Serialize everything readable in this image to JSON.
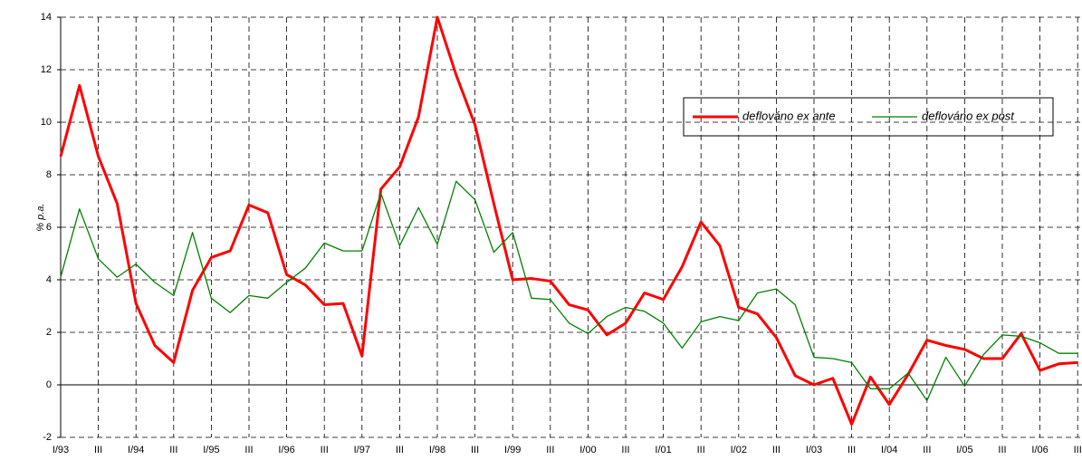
{
  "chart_data": {
    "type": "line",
    "y_label": "% p.a.",
    "categories": [
      "I/93",
      null,
      "III",
      null,
      "I/94",
      null,
      "III",
      null,
      "I/95",
      null,
      "III",
      null,
      "I/96",
      null,
      "III",
      null,
      "I/97",
      null,
      "III",
      null,
      "I/98",
      null,
      "III",
      null,
      "I/99",
      null,
      "III",
      null,
      "I/00",
      null,
      "III",
      null,
      "I/01",
      null,
      "III",
      null,
      "I/02",
      null,
      "III",
      null,
      "I/03",
      null,
      "III",
      null,
      "I/04",
      null,
      "III",
      null,
      "I/05",
      null,
      "III",
      null,
      "I/06",
      null,
      "III"
    ],
    "series": [
      {
        "name": "deflováno ex ante",
        "color": "#ff0000",
        "values": [
          8.7,
          11.4,
          8.7,
          6.9,
          3.1,
          1.5,
          0.85,
          3.6,
          4.85,
          5.1,
          6.85,
          6.55,
          4.2,
          3.8,
          3.05,
          3.1,
          1.1,
          7.45,
          8.3,
          10.2,
          14.0,
          11.8,
          9.9,
          6.9,
          4.0,
          4.05,
          3.95,
          3.05,
          2.85,
          1.9,
          2.35,
          3.5,
          3.25,
          4.5,
          6.2,
          5.3,
          2.95,
          2.7,
          1.8,
          0.35,
          0.0,
          0.25,
          -1.5,
          0.3,
          -0.75,
          0.4,
          1.7,
          1.5,
          1.35,
          1.0,
          1.0,
          1.95,
          0.55,
          0.8,
          0.85
        ]
      },
      {
        "name": "deflováno ex post",
        "color": "#008000",
        "values": [
          4.1,
          6.7,
          4.8,
          4.1,
          4.6,
          3.9,
          3.4,
          5.8,
          3.3,
          2.75,
          3.4,
          3.3,
          3.9,
          4.45,
          5.4,
          5.1,
          5.1,
          7.3,
          5.3,
          6.75,
          5.35,
          7.75,
          7.05,
          5.05,
          5.8,
          3.3,
          3.25,
          2.35,
          1.95,
          2.6,
          2.95,
          2.8,
          2.35,
          1.4,
          2.4,
          2.6,
          2.45,
          3.5,
          3.65,
          3.05,
          1.05,
          1.0,
          0.85,
          -0.15,
          -0.15,
          0.45,
          -0.6,
          1.05,
          -0.05,
          1.15,
          1.9,
          1.85,
          1.6,
          1.2,
          1.2
        ]
      }
    ],
    "ylim": [
      -2,
      14
    ],
    "yticks": [
      -2,
      0,
      2,
      4,
      6,
      8,
      10,
      12,
      14
    ],
    "grid": true
  }
}
